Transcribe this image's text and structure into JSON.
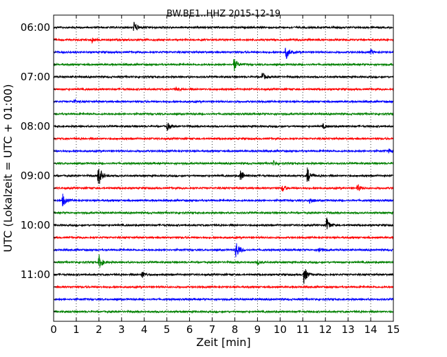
{
  "chart_data": {
    "type": "line",
    "title": "BW.BE1..HHZ 2015-12-19",
    "xlabel": "Zeit  [min]",
    "ylabel": "UTC (Lokalzeit = UTC + 01:00)",
    "xlim": [
      0,
      15
    ],
    "x_ticks": [
      "0",
      "1",
      "2",
      "3",
      "4",
      "5",
      "6",
      "7",
      "8",
      "9",
      "10",
      "11",
      "12",
      "13",
      "14",
      "15"
    ],
    "y_tick_labels": [
      "06:00",
      "07:00",
      "08:00",
      "09:00",
      "10:00",
      "11:00"
    ],
    "trace_interval_min": 15,
    "grid": "vertical dotted at each minute",
    "colors": [
      "#000000",
      "#ff0000",
      "#0000ff",
      "#008000"
    ],
    "traces": [
      {
        "start": "06:00",
        "events": [
          {
            "minute": 3.55,
            "amp": 0.8
          }
        ]
      },
      {
        "start": "06:15",
        "events": [
          {
            "minute": 1.7,
            "amp": 0.35
          }
        ]
      },
      {
        "start": "06:30",
        "events": [
          {
            "minute": 10.25,
            "amp": 1.0
          },
          {
            "minute": 14.0,
            "amp": 0.3
          }
        ]
      },
      {
        "start": "06:45",
        "events": [
          {
            "minute": 7.95,
            "amp": 1.0
          }
        ]
      },
      {
        "start": "07:00",
        "events": [
          {
            "minute": 9.2,
            "amp": 0.6
          }
        ]
      },
      {
        "start": "07:15",
        "events": [
          {
            "minute": 5.4,
            "amp": 0.25
          }
        ]
      },
      {
        "start": "07:30",
        "events": [
          {
            "minute": 0.9,
            "amp": 0.25
          }
        ]
      },
      {
        "start": "07:45",
        "events": []
      },
      {
        "start": "08:00",
        "events": [
          {
            "minute": 5.0,
            "amp": 0.55
          },
          {
            "minute": 11.9,
            "amp": 0.3
          }
        ]
      },
      {
        "start": "08:15",
        "events": []
      },
      {
        "start": "08:30",
        "events": [
          {
            "minute": 14.8,
            "amp": 0.25
          }
        ]
      },
      {
        "start": "08:45",
        "events": [
          {
            "minute": 9.7,
            "amp": 0.35
          }
        ]
      },
      {
        "start": "09:00",
        "events": [
          {
            "minute": 1.97,
            "amp": 1.6
          },
          {
            "minute": 8.25,
            "amp": 0.9
          },
          {
            "minute": 11.2,
            "amp": 1.1
          }
        ]
      },
      {
        "start": "09:15",
        "events": [
          {
            "minute": 10.1,
            "amp": 0.5
          },
          {
            "minute": 13.4,
            "amp": 0.5
          }
        ]
      },
      {
        "start": "09:30",
        "events": [
          {
            "minute": 0.4,
            "amp": 0.9
          },
          {
            "minute": 11.3,
            "amp": 0.5
          }
        ]
      },
      {
        "start": "09:45",
        "events": []
      },
      {
        "start": "10:00",
        "events": [
          {
            "minute": 12.05,
            "amp": 1.0
          }
        ]
      },
      {
        "start": "10:15",
        "events": []
      },
      {
        "start": "10:30",
        "events": [
          {
            "minute": 8.05,
            "amp": 1.3
          },
          {
            "minute": 11.7,
            "amp": 0.45
          }
        ]
      },
      {
        "start": "10:45",
        "events": [
          {
            "minute": 2.0,
            "amp": 1.0
          },
          {
            "minute": 9.0,
            "amp": 0.3
          }
        ]
      },
      {
        "start": "11:00",
        "events": [
          {
            "minute": 3.9,
            "amp": 0.5
          },
          {
            "minute": 11.05,
            "amp": 1.2
          }
        ]
      },
      {
        "start": "11:15",
        "events": []
      },
      {
        "start": "11:30",
        "events": []
      },
      {
        "start": "11:45",
        "events": []
      }
    ]
  }
}
